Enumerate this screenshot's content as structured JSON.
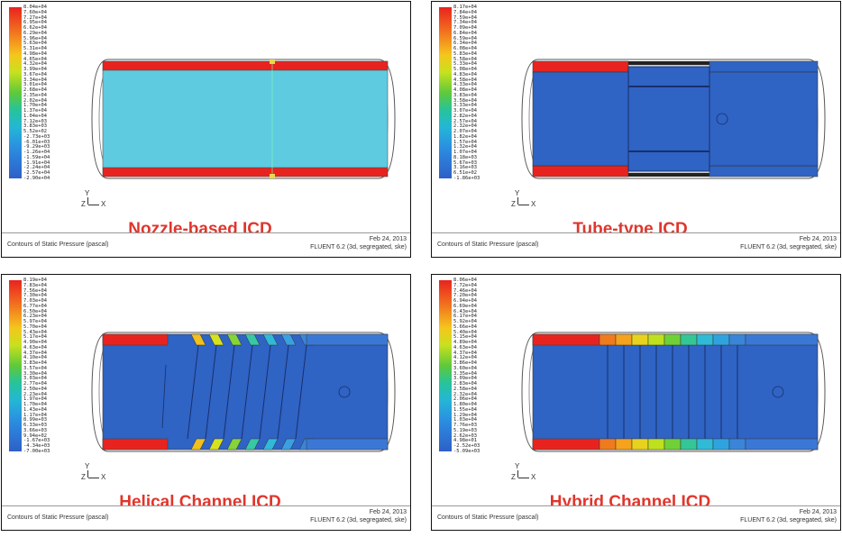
{
  "footer": {
    "caption": "Contours of Static Pressure (pascal)",
    "date": "Feb 24, 2013",
    "solver": "FLUENT 6.2 (3d, segregated, ske)"
  },
  "axis_labels": {
    "y": "Y",
    "z": "Z",
    "x": "X"
  },
  "panels": [
    {
      "title": "Nozzle-based ICD",
      "colorbar": [
        "8.04e+04",
        "7.60e+04",
        "7.27e+04",
        "6.95e+04",
        "6.62e+04",
        "6.29e+04",
        "5.96e+04",
        "5.63e+04",
        "5.31e+04",
        "4.98e+04",
        "4.65e+04",
        "4.32e+04",
        "3.99e+04",
        "3.67e+04",
        "3.34e+04",
        "3.01e+04",
        "2.68e+04",
        "2.35e+04",
        "2.02e+04",
        "1.70e+04",
        "1.37e+04",
        "1.04e+04",
        "7.12e+03",
        "3.83e+03",
        "5.52e+02",
        "-2.73e+03",
        "-6.01e+03",
        "-9.29e+03",
        "-1.26e+04",
        "-1.59e+04",
        "-1.91e+04",
        "-2.24e+04",
        "-2.57e+04",
        "-2.90e+04"
      ]
    },
    {
      "title": "Tube-type ICD",
      "colorbar": [
        "8.17e+04",
        "7.84e+04",
        "7.59e+04",
        "7.34e+04",
        "7.09e+04",
        "6.84e+04",
        "6.59e+04",
        "6.34e+04",
        "6.08e+04",
        "5.83e+04",
        "5.58e+04",
        "5.33e+04",
        "5.08e+04",
        "4.83e+04",
        "4.58e+04",
        "4.33e+04",
        "4.08e+04",
        "3.83e+04",
        "3.58e+04",
        "3.33e+04",
        "3.07e+04",
        "2.82e+04",
        "2.57e+04",
        "2.32e+04",
        "2.07e+04",
        "1.82e+04",
        "1.57e+04",
        "1.32e+04",
        "1.07e+04",
        "8.18e+03",
        "5.67e+03",
        "3.16e+03",
        "6.51e+02",
        "-1.86e+03"
      ]
    },
    {
      "title": "Helical Channel ICD",
      "colorbar": [
        "8.19e+04",
        "7.83e+04",
        "7.56e+04",
        "7.30e+04",
        "7.03e+04",
        "6.77e+04",
        "6.50e+04",
        "6.23e+04",
        "5.97e+04",
        "5.70e+04",
        "5.43e+04",
        "5.17e+04",
        "4.90e+04",
        "4.63e+04",
        "4.37e+04",
        "4.10e+04",
        "3.83e+04",
        "3.57e+04",
        "3.30e+04",
        "3.03e+04",
        "2.77e+04",
        "2.50e+04",
        "2.23e+04",
        "1.97e+04",
        "1.70e+04",
        "1.43e+04",
        "1.17e+04",
        "8.99e+03",
        "6.33e+03",
        "3.66e+03",
        "9.94e+02",
        "-1.67e+03",
        "-4.34e+03",
        "-7.00e+03"
      ]
    },
    {
      "title": "Hybrid Channel ICD",
      "colorbar": [
        "8.06e+04",
        "7.72e+04",
        "7.46e+04",
        "7.20e+04",
        "6.94e+04",
        "6.69e+04",
        "6.43e+04",
        "6.17e+04",
        "5.92e+04",
        "5.66e+04",
        "5.40e+04",
        "5.15e+04",
        "4.89e+04",
        "4.63e+04",
        "4.37e+04",
        "4.12e+04",
        "3.86e+04",
        "3.60e+04",
        "3.35e+04",
        "3.09e+04",
        "2.83e+04",
        "2.58e+04",
        "2.32e+04",
        "2.06e+04",
        "1.80e+04",
        "1.55e+04",
        "1.29e+04",
        "1.03e+04",
        "7.76e+03",
        "5.19e+03",
        "2.62e+03",
        "4.98e+01",
        "-2.52e+03",
        "-5.09e+03"
      ]
    }
  ],
  "colors": {
    "high": "#e8231f",
    "bulk_nozzle": "#5ecbe0",
    "bulk_low": "#2f63c4",
    "title_red": "#e0362c"
  }
}
